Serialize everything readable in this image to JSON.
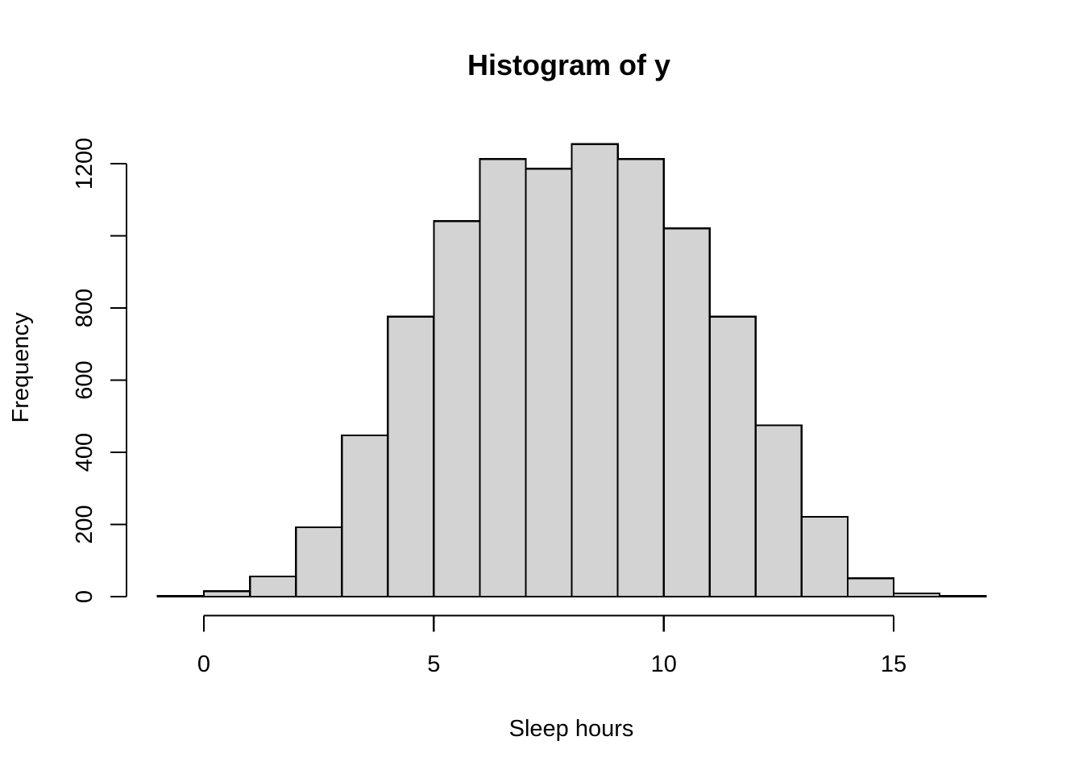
{
  "figure": {
    "background": "#FFFFFF"
  },
  "chart_data": {
    "type": "bar",
    "subtype": "histogram",
    "title": "Histogram of y",
    "xlabel": "Sleep hours",
    "ylabel": "Frequency",
    "bin_breaks": [
      -1,
      0,
      1,
      2,
      3,
      4,
      5,
      6,
      7,
      8,
      9,
      10,
      11,
      12,
      13,
      14,
      15,
      16,
      17
    ],
    "counts": [
      2,
      15,
      56,
      192,
      447,
      776,
      1041,
      1213,
      1186,
      1254,
      1213,
      1021,
      776,
      475,
      221,
      51,
      9,
      2
    ],
    "xlim": [
      -1,
      17
    ],
    "ylim": [
      0,
      1200
    ],
    "x_ticks": [
      0,
      5,
      10,
      15
    ],
    "x_tick_labels": [
      "0",
      "5",
      "10",
      "15"
    ],
    "y_ticks": [
      0,
      200,
      400,
      600,
      800,
      1000,
      1200
    ],
    "y_tick_labels": [
      "0",
      "200",
      "400",
      "600",
      "800",
      "",
      "1200"
    ],
    "grid": false,
    "legend": null,
    "bar_fill": "#D3D3D3",
    "bar_stroke": "#000000",
    "axis_color": "#000000",
    "text_color": "#000000"
  }
}
